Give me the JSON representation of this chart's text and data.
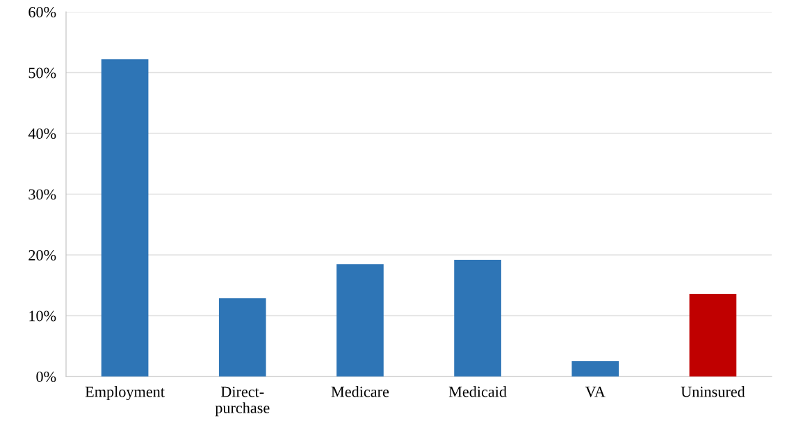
{
  "chart_data": {
    "type": "bar",
    "categories": [
      "Employment",
      "Direct-\npurchase",
      "Medicare",
      "Medicaid",
      "VA",
      "Uninsured"
    ],
    "values": [
      52.2,
      12.9,
      18.5,
      19.2,
      2.5,
      13.6
    ],
    "colors": [
      "#2e75b6",
      "#2e75b6",
      "#2e75b6",
      "#2e75b6",
      "#2e75b6",
      "#c00000"
    ],
    "ylim": [
      0,
      60
    ],
    "yticks": [
      {
        "value": 0,
        "label": "0%"
      },
      {
        "value": 10,
        "label": "10%"
      },
      {
        "value": 20,
        "label": "20%"
      },
      {
        "value": 30,
        "label": "30%"
      },
      {
        "value": 40,
        "label": "40%"
      },
      {
        "value": 50,
        "label": "50%"
      },
      {
        "value": 60,
        "label": "60%"
      }
    ],
    "grid": "y",
    "legend": false
  }
}
